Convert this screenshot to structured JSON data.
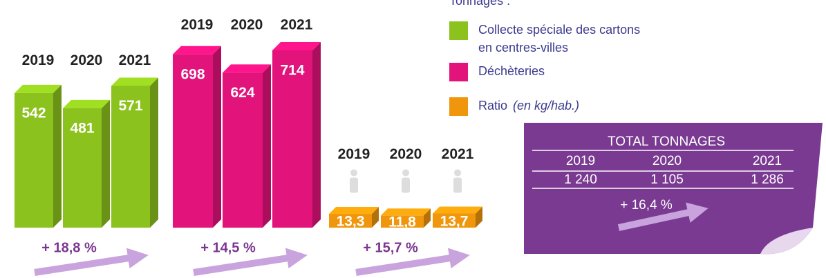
{
  "chart_data": [
    {
      "type": "bar",
      "categories": [
        "2019",
        "2020",
        "2021"
      ],
      "values": [
        542,
        481,
        571
      ],
      "color": "#8cc21e",
      "annotation": "+ 18,8 %"
    },
    {
      "type": "bar",
      "categories": [
        "2019",
        "2020",
        "2021"
      ],
      "values": [
        698,
        624,
        714
      ],
      "color": "#e2137a",
      "annotation": "+ 14,5 %"
    },
    {
      "type": "bar",
      "categories": [
        "2019",
        "2020",
        "2021"
      ],
      "values": [
        13.3,
        11.8,
        13.7
      ],
      "value_labels": [
        "13,3",
        "11,8",
        "13,7"
      ],
      "color": "#f0960c",
      "annotation": "+ 15,7 %"
    }
  ],
  "legend": {
    "title": "Tonnages :",
    "items": [
      {
        "label": "Collecte spéciale des cartons",
        "label2": "en centres-villes",
        "color": "#8cc21e"
      },
      {
        "label": "Déchèteries",
        "color": "#e2137a"
      },
      {
        "label": "Ratio",
        "qualifier": "(en kg/hab.)",
        "color": "#f0960c"
      }
    ]
  },
  "total": {
    "title": "TOTAL TONNAGES",
    "columns": [
      "2019",
      "2020",
      "2021"
    ],
    "values": [
      "1 240",
      "1 105",
      "1 286"
    ],
    "change": "+ 16,4 %"
  }
}
